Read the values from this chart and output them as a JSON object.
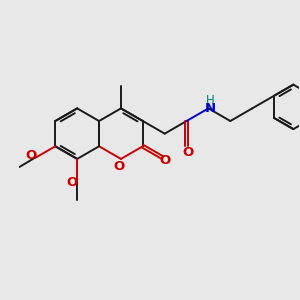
{
  "bg_color": "#e8e8e8",
  "bond_color": "#1a1a1a",
  "o_color": "#cc0000",
  "n_color": "#0000cc",
  "h_color": "#008080",
  "lw": 1.4,
  "fs": 8.5,
  "xlim": [
    0,
    10
  ],
  "ylim": [
    0,
    10
  ]
}
